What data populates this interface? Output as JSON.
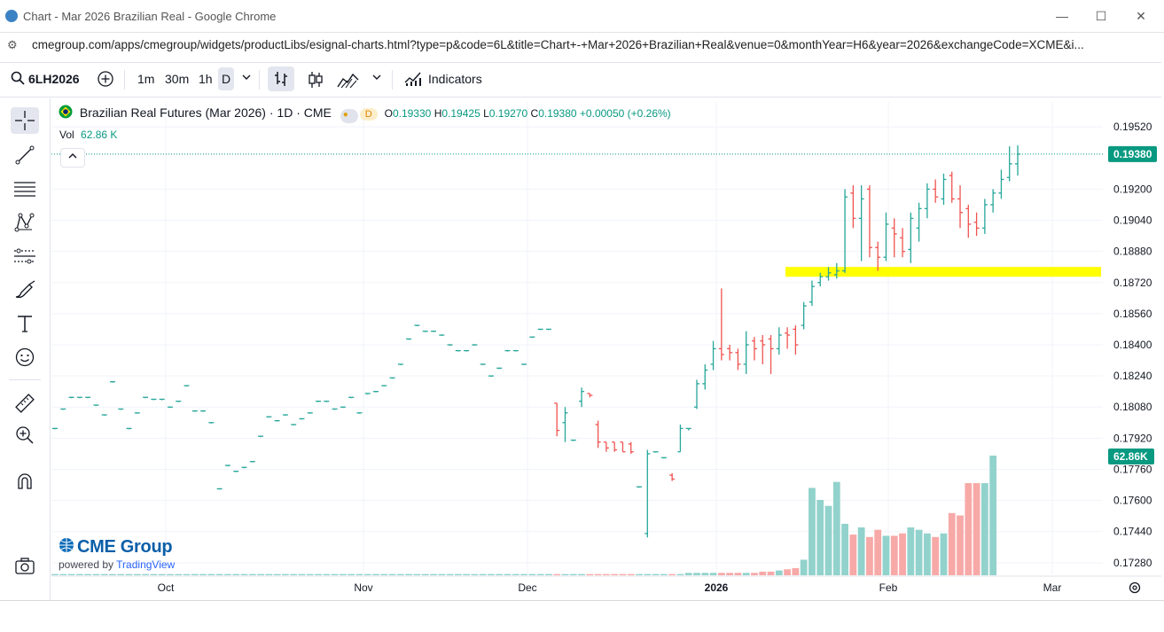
{
  "browser": {
    "tab_title": "Chart - Mar 2026 Brazilian Real - Google Chrome",
    "url": "cmegroup.com/apps/cmegroup/widgets/productLibs/esignal-charts.html?type=p&code=6L&title=Chart+-+Mar+2026+Brazilian+Real&venue=0&monthYear=H6&year=2026&exchangeCode=XCME&i...",
    "minimize": "—",
    "maximize": "☐",
    "close": "✕"
  },
  "toolbar": {
    "symbol": "6LH2026",
    "intervals": [
      "1m",
      "30m",
      "1h",
      "D"
    ],
    "indicators_label": "Indicators"
  },
  "legend": {
    "title": "Brazilian Real Futures (Mar 2026) · 1D · CME",
    "badge": "D",
    "o_label": "O",
    "o": "0.19330",
    "h_label": "H",
    "h": "0.19425",
    "l_label": "L",
    "l": "0.19270",
    "c_label": "C",
    "c": "0.19380",
    "change": "+0.00050 (+0.26%)",
    "vol_label": "Vol",
    "vol_value": "62.86 K"
  },
  "branding": {
    "logo": "CME Group",
    "powered": "powered by",
    "tv": "TradingView"
  },
  "colors": {
    "up": "#26a69a",
    "down": "#ef5350",
    "vol_up": "#92d2cc",
    "vol_down": "#f7a9a7",
    "highlight": "#ffff00",
    "last_price": "#089981"
  },
  "chart_data": {
    "type": "ohlc",
    "y_ticks": [
      "0.19520",
      "0.19200",
      "0.19040",
      "0.18880",
      "0.18720",
      "0.18560",
      "0.18400",
      "0.18240",
      "0.18080",
      "0.17920",
      "0.17760",
      "0.17600",
      "0.17440",
      "0.17280"
    ],
    "x_ticks": [
      "Oct",
      "Nov",
      "Dec",
      "2026",
      "Feb",
      "Mar"
    ],
    "ylim": [
      0.1722,
      0.1958
    ],
    "last_price_label": "0.19380",
    "volume_label": "62.86K",
    "highlight_zone": {
      "from": 0.1875,
      "to": 0.188
    },
    "bars": [
      {
        "o": 0.1797,
        "h": 0.1797,
        "l": 0.1797,
        "c": 0.1797
      },
      {
        "o": 0.1807,
        "h": 0.1807,
        "l": 0.1807,
        "c": 0.1807
      },
      {
        "o": 0.1813,
        "h": 0.1813,
        "l": 0.1813,
        "c": 0.1813
      },
      {
        "o": 0.1813,
        "h": 0.1813,
        "l": 0.1813,
        "c": 0.1813
      },
      {
        "o": 0.1813,
        "h": 0.1813,
        "l": 0.1813,
        "c": 0.1813
      },
      {
        "o": 0.1809,
        "h": 0.1809,
        "l": 0.1809,
        "c": 0.1809
      },
      {
        "o": 0.1804,
        "h": 0.1804,
        "l": 0.1804,
        "c": 0.1804
      },
      {
        "o": 0.1821,
        "h": 0.1821,
        "l": 0.1821,
        "c": 0.1821
      },
      {
        "o": 0.1807,
        "h": 0.1807,
        "l": 0.1807,
        "c": 0.1807
      },
      {
        "o": 0.1797,
        "h": 0.1797,
        "l": 0.1797,
        "c": 0.1797
      },
      {
        "o": 0.1805,
        "h": 0.1805,
        "l": 0.1805,
        "c": 0.1805
      },
      {
        "o": 0.1813,
        "h": 0.1813,
        "l": 0.1813,
        "c": 0.1813
      },
      {
        "o": 0.1812,
        "h": 0.1812,
        "l": 0.1812,
        "c": 0.1812
      },
      {
        "o": 0.1812,
        "h": 0.1812,
        "l": 0.1812,
        "c": 0.1812
      },
      {
        "o": 0.1808,
        "h": 0.1808,
        "l": 0.1808,
        "c": 0.1808
      },
      {
        "o": 0.1811,
        "h": 0.1811,
        "l": 0.1811,
        "c": 0.1811
      },
      {
        "o": 0.1819,
        "h": 0.1819,
        "l": 0.1819,
        "c": 0.1819
      },
      {
        "o": 0.1806,
        "h": 0.1806,
        "l": 0.1806,
        "c": 0.1806
      },
      {
        "o": 0.1806,
        "h": 0.1806,
        "l": 0.1806,
        "c": 0.1806
      },
      {
        "o": 0.18,
        "h": 0.18,
        "l": 0.18,
        "c": 0.18
      },
      {
        "o": 0.1766,
        "h": 0.1766,
        "l": 0.1766,
        "c": 0.1766
      },
      {
        "o": 0.1778,
        "h": 0.1778,
        "l": 0.1778,
        "c": 0.1778
      },
      {
        "o": 0.1775,
        "h": 0.1775,
        "l": 0.1775,
        "c": 0.1775
      },
      {
        "o": 0.1777,
        "h": 0.1777,
        "l": 0.1777,
        "c": 0.1777
      },
      {
        "o": 0.178,
        "h": 0.178,
        "l": 0.178,
        "c": 0.178
      },
      {
        "o": 0.1793,
        "h": 0.1793,
        "l": 0.1793,
        "c": 0.1793
      },
      {
        "o": 0.1803,
        "h": 0.1803,
        "l": 0.1803,
        "c": 0.1803
      },
      {
        "o": 0.1801,
        "h": 0.1801,
        "l": 0.1801,
        "c": 0.1801
      },
      {
        "o": 0.1804,
        "h": 0.1804,
        "l": 0.1804,
        "c": 0.1804
      },
      {
        "o": 0.1799,
        "h": 0.1799,
        "l": 0.1799,
        "c": 0.1799
      },
      {
        "o": 0.1802,
        "h": 0.1802,
        "l": 0.1802,
        "c": 0.1802
      },
      {
        "o": 0.1805,
        "h": 0.1805,
        "l": 0.1805,
        "c": 0.1805
      },
      {
        "o": 0.1811,
        "h": 0.1811,
        "l": 0.1811,
        "c": 0.1811
      },
      {
        "o": 0.1811,
        "h": 0.1811,
        "l": 0.1811,
        "c": 0.1811
      },
      {
        "o": 0.1807,
        "h": 0.1807,
        "l": 0.1807,
        "c": 0.1807
      },
      {
        "o": 0.1808,
        "h": 0.1808,
        "l": 0.1808,
        "c": 0.1808
      },
      {
        "o": 0.1813,
        "h": 0.1813,
        "l": 0.1813,
        "c": 0.1813
      },
      {
        "o": 0.1805,
        "h": 0.1805,
        "l": 0.1805,
        "c": 0.1805
      },
      {
        "o": 0.1815,
        "h": 0.1815,
        "l": 0.1815,
        "c": 0.1815
      },
      {
        "o": 0.1816,
        "h": 0.1816,
        "l": 0.1816,
        "c": 0.1816
      },
      {
        "o": 0.1819,
        "h": 0.1819,
        "l": 0.1819,
        "c": 0.1819
      },
      {
        "o": 0.1823,
        "h": 0.1823,
        "l": 0.1823,
        "c": 0.1823
      },
      {
        "o": 0.183,
        "h": 0.183,
        "l": 0.183,
        "c": 0.183
      },
      {
        "o": 0.1843,
        "h": 0.1843,
        "l": 0.1843,
        "c": 0.1843
      },
      {
        "o": 0.185,
        "h": 0.185,
        "l": 0.185,
        "c": 0.185
      },
      {
        "o": 0.1847,
        "h": 0.1847,
        "l": 0.1847,
        "c": 0.1847
      },
      {
        "o": 0.1847,
        "h": 0.1847,
        "l": 0.1847,
        "c": 0.1847
      },
      {
        "o": 0.1845,
        "h": 0.1845,
        "l": 0.1845,
        "c": 0.1845
      },
      {
        "o": 0.184,
        "h": 0.184,
        "l": 0.184,
        "c": 0.184
      },
      {
        "o": 0.1837,
        "h": 0.1837,
        "l": 0.1837,
        "c": 0.1837
      },
      {
        "o": 0.1837,
        "h": 0.1837,
        "l": 0.1837,
        "c": 0.1837
      },
      {
        "o": 0.184,
        "h": 0.184,
        "l": 0.184,
        "c": 0.184
      },
      {
        "o": 0.183,
        "h": 0.183,
        "l": 0.183,
        "c": 0.183
      },
      {
        "o": 0.1824,
        "h": 0.1824,
        "l": 0.1824,
        "c": 0.1824
      },
      {
        "o": 0.1828,
        "h": 0.1828,
        "l": 0.1828,
        "c": 0.1828
      },
      {
        "o": 0.1837,
        "h": 0.1837,
        "l": 0.1837,
        "c": 0.1837
      },
      {
        "o": 0.1837,
        "h": 0.1837,
        "l": 0.1837,
        "c": 0.1837
      },
      {
        "o": 0.183,
        "h": 0.183,
        "l": 0.183,
        "c": 0.183
      },
      {
        "o": 0.1844,
        "h": 0.1844,
        "l": 0.1844,
        "c": 0.1844
      },
      {
        "o": 0.1848,
        "h": 0.1848,
        "l": 0.1848,
        "c": 0.1848
      },
      {
        "o": 0.1848,
        "h": 0.1848,
        "l": 0.1848,
        "c": 0.1848
      },
      {
        "o": 0.181,
        "h": 0.181,
        "l": 0.1793,
        "c": 0.1796
      },
      {
        "o": 0.18,
        "h": 0.1808,
        "l": 0.179,
        "c": 0.1805
      },
      {
        "o": 0.1791,
        "h": 0.1791,
        "l": 0.1791,
        "c": 0.1791
      },
      {
        "o": 0.1811,
        "h": 0.1818,
        "l": 0.1808,
        "c": 0.1816
      },
      {
        "o": 0.1815,
        "h": 0.1815,
        "l": 0.1813,
        "c": 0.1814
      },
      {
        "o": 0.1799,
        "h": 0.1801,
        "l": 0.1787,
        "c": 0.179
      },
      {
        "o": 0.179,
        "h": 0.179,
        "l": 0.1785,
        "c": 0.1787
      },
      {
        "o": 0.179,
        "h": 0.179,
        "l": 0.1785,
        "c": 0.1786
      },
      {
        "o": 0.179,
        "h": 0.179,
        "l": 0.1785,
        "c": 0.1785
      },
      {
        "o": 0.1789,
        "h": 0.179,
        "l": 0.1784,
        "c": 0.1785
      },
      {
        "o": 0.1767,
        "h": 0.1767,
        "l": 0.1767,
        "c": 0.1767
      },
      {
        "o": 0.1743,
        "h": 0.1786,
        "l": 0.1741,
        "c": 0.1784
      },
      {
        "o": 0.1785,
        "h": 0.1785,
        "l": 0.1785,
        "c": 0.1785
      },
      {
        "o": 0.1782,
        "h": 0.1782,
        "l": 0.1782,
        "c": 0.1782
      },
      {
        "o": 0.1773,
        "h": 0.1774,
        "l": 0.177,
        "c": 0.1771
      },
      {
        "o": 0.1785,
        "h": 0.1799,
        "l": 0.1785,
        "c": 0.1797
      },
      {
        "o": 0.1797,
        "h": 0.1797,
        "l": 0.1796,
        "c": 0.1797
      },
      {
        "o": 0.1808,
        "h": 0.1822,
        "l": 0.1807,
        "c": 0.182
      },
      {
        "o": 0.182,
        "h": 0.183,
        "l": 0.1817,
        "c": 0.1827
      },
      {
        "o": 0.183,
        "h": 0.1842,
        "l": 0.1827,
        "c": 0.1838
      },
      {
        "o": 0.1838,
        "h": 0.1869,
        "l": 0.1832,
        "c": 0.1835
      },
      {
        "o": 0.1838,
        "h": 0.184,
        "l": 0.1832,
        "c": 0.1836
      },
      {
        "o": 0.1836,
        "h": 0.1838,
        "l": 0.1827,
        "c": 0.183
      },
      {
        "o": 0.183,
        "h": 0.1847,
        "l": 0.1825,
        "c": 0.184
      },
      {
        "o": 0.1842,
        "h": 0.1844,
        "l": 0.1832,
        "c": 0.1838
      },
      {
        "o": 0.1842,
        "h": 0.1845,
        "l": 0.183,
        "c": 0.184
      },
      {
        "o": 0.1843,
        "h": 0.1845,
        "l": 0.1825,
        "c": 0.1838
      },
      {
        "o": 0.1838,
        "h": 0.1849,
        "l": 0.1835,
        "c": 0.1845
      },
      {
        "o": 0.1846,
        "h": 0.1849,
        "l": 0.1838,
        "c": 0.1845
      },
      {
        "o": 0.1848,
        "h": 0.185,
        "l": 0.1835,
        "c": 0.184
      },
      {
        "o": 0.185,
        "h": 0.1862,
        "l": 0.1848,
        "c": 0.186
      },
      {
        "o": 0.1862,
        "h": 0.1873,
        "l": 0.186,
        "c": 0.187
      },
      {
        "o": 0.1872,
        "h": 0.1877,
        "l": 0.187,
        "c": 0.1875
      },
      {
        "o": 0.1875,
        "h": 0.188,
        "l": 0.1873,
        "c": 0.1877
      },
      {
        "o": 0.1876,
        "h": 0.1882,
        "l": 0.1874,
        "c": 0.1878
      },
      {
        "o": 0.1878,
        "h": 0.192,
        "l": 0.1877,
        "c": 0.1916
      },
      {
        "o": 0.1918,
        "h": 0.1922,
        "l": 0.19,
        "c": 0.1905
      },
      {
        "o": 0.1905,
        "h": 0.1922,
        "l": 0.1883,
        "c": 0.1915
      },
      {
        "o": 0.192,
        "h": 0.1922,
        "l": 0.1885,
        "c": 0.189
      },
      {
        "o": 0.189,
        "h": 0.1893,
        "l": 0.1878,
        "c": 0.1885
      },
      {
        "o": 0.1885,
        "h": 0.1908,
        "l": 0.1883,
        "c": 0.1902
      },
      {
        "o": 0.19,
        "h": 0.1905,
        "l": 0.1885,
        "c": 0.1897
      },
      {
        "o": 0.1895,
        "h": 0.19,
        "l": 0.1885,
        "c": 0.1888
      },
      {
        "o": 0.1889,
        "h": 0.1908,
        "l": 0.1882,
        "c": 0.1905
      },
      {
        "o": 0.19,
        "h": 0.1913,
        "l": 0.1893,
        "c": 0.191
      },
      {
        "o": 0.191,
        "h": 0.1923,
        "l": 0.1905,
        "c": 0.192
      },
      {
        "o": 0.192,
        "h": 0.1925,
        "l": 0.1913,
        "c": 0.1916
      },
      {
        "o": 0.1915,
        "h": 0.1928,
        "l": 0.1912,
        "c": 0.1925
      },
      {
        "o": 0.1927,
        "h": 0.1929,
        "l": 0.1913,
        "c": 0.1915
      },
      {
        "o": 0.1915,
        "h": 0.1922,
        "l": 0.19,
        "c": 0.1908
      },
      {
        "o": 0.191,
        "h": 0.1912,
        "l": 0.1895,
        "c": 0.1902
      },
      {
        "o": 0.1903,
        "h": 0.1908,
        "l": 0.1896,
        "c": 0.19
      },
      {
        "o": 0.19,
        "h": 0.1915,
        "l": 0.1897,
        "c": 0.1912
      },
      {
        "o": 0.1912,
        "h": 0.192,
        "l": 0.1908,
        "c": 0.1918
      },
      {
        "o": 0.1918,
        "h": 0.193,
        "l": 0.1915,
        "c": 0.1925
      },
      {
        "o": 0.1926,
        "h": 0.1942,
        "l": 0.1924,
        "c": 0.1933
      },
      {
        "o": 0.1933,
        "h": 0.19425,
        "l": 0.1927,
        "c": 0.1938
      }
    ],
    "volumes": [
      0.01,
      0.01,
      0.01,
      0.01,
      0.01,
      0.01,
      0.01,
      0.01,
      0.01,
      0.01,
      0.01,
      0.01,
      0.01,
      0.01,
      0.01,
      0.01,
      0.01,
      0.01,
      0.01,
      0.01,
      0.01,
      0.01,
      0.01,
      0.01,
      0.01,
      0.01,
      0.01,
      0.01,
      0.01,
      0.01,
      0.01,
      0.01,
      0.01,
      0.01,
      0.01,
      0.01,
      0.01,
      0.01,
      0.01,
      0.01,
      0.01,
      0.01,
      0.01,
      0.01,
      0.01,
      0.01,
      0.01,
      0.01,
      0.01,
      0.01,
      0.01,
      0.01,
      0.01,
      0.01,
      0.01,
      0.01,
      0.01,
      0.01,
      0.01,
      0.01,
      0.01,
      0.01,
      0.01,
      0.01,
      0.01,
      0.01,
      0.01,
      0.01,
      0.01,
      0.01,
      0.01,
      0.01,
      0.01,
      0.01,
      0.01,
      0.01,
      0.01,
      0.02,
      0.02,
      0.02,
      0.02,
      0.02,
      0.02,
      0.02,
      0.02,
      0.02,
      0.03,
      0.03,
      0.04,
      0.05,
      0.06,
      0.13,
      0.73,
      0.63,
      0.58,
      0.78,
      0.43,
      0.34,
      0.4,
      0.32,
      0.38,
      0.33,
      0.33,
      0.35,
      0.4,
      0.38,
      0.35,
      0.32,
      0.35,
      0.52,
      0.5,
      0.77,
      0.77,
      0.77,
      1.0
    ]
  }
}
